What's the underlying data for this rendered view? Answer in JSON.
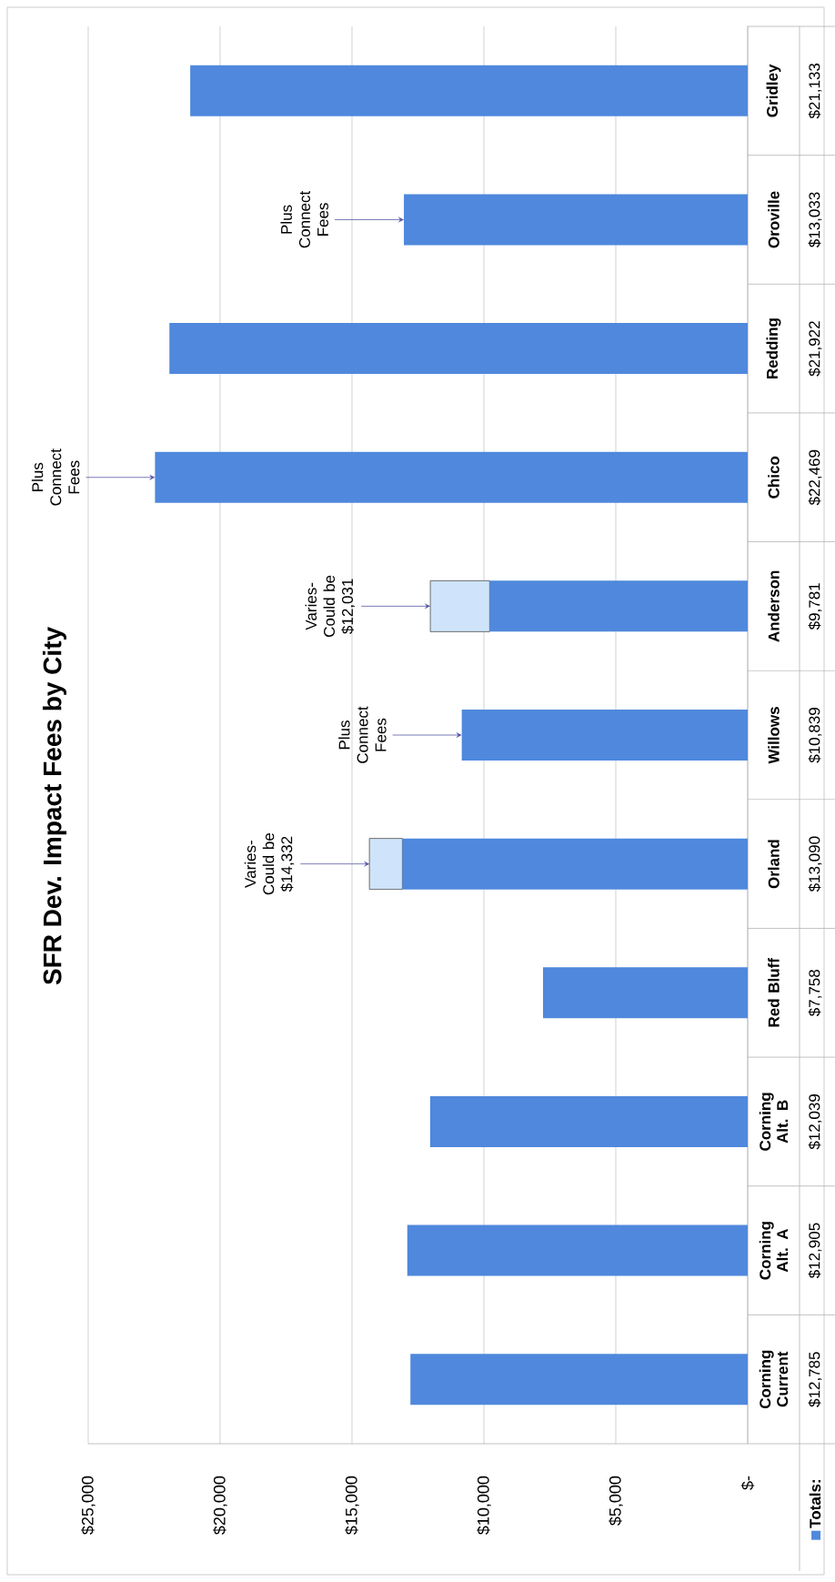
{
  "chart_data": {
    "type": "bar",
    "title": "SFR Dev. Impact Fees by City",
    "categories": [
      "Gridley",
      "Oroville",
      "Redding",
      "Chico",
      "Anderson",
      "Willows",
      "Orland",
      "Red Bluff",
      "Corning Alt. B",
      "Corning Alt. A",
      "Corning Current"
    ],
    "series": [
      {
        "name": "Totals:",
        "color": "#4f88dc",
        "values": [
          21133,
          13033,
          21922,
          22469,
          9781,
          10839,
          13090,
          7758,
          12039,
          12905,
          12785
        ],
        "value_labels": [
          "$21,133",
          "$13,033",
          "$21,922",
          "$22,469",
          "$9,781",
          "$10,839",
          "$13,090",
          "$7,758",
          "$12,039",
          "$12,905",
          "$12,785"
        ]
      },
      {
        "color": "#cfe4fa",
        "values": [
          null,
          null,
          null,
          null,
          2250,
          null,
          1250,
          null,
          null,
          null,
          null
        ]
      }
    ],
    "stacked": true,
    "orientation": "horizontal",
    "xlim": [
      25000,
      0
    ],
    "xticks": [
      {
        "value": 0,
        "label": "$-"
      },
      {
        "value": 5000,
        "label": "$5,000"
      },
      {
        "value": 10000,
        "label": "$10,000"
      },
      {
        "value": 15000,
        "label": "$15,000"
      },
      {
        "value": 20000,
        "label": "$20,000"
      },
      {
        "value": 25000,
        "label": "$25,000"
      }
    ],
    "grid": "x",
    "legend": "bottom right",
    "annotations": [
      {
        "text": "Plus Connect Fees",
        "y": "Oroville",
        "x": 13033
      },
      {
        "text": "Plus Connect Fees",
        "y": "Chico",
        "x": 22469
      },
      {
        "text": "Varies-Could be $12,031",
        "y": "Anderson",
        "x": 12031
      },
      {
        "text": "Plus Connect Fees",
        "y": "Willows",
        "x": 10839
      },
      {
        "text": "Varies-Could be $14,332",
        "y": "Orland",
        "x": 14332
      }
    ]
  }
}
